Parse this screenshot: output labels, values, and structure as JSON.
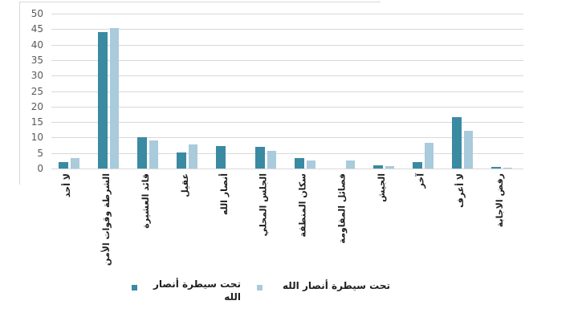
{
  "chart_data": {
    "type": "bar",
    "title": "",
    "xlabel": "",
    "ylabel": "",
    "categories": [
      "لا أحد",
      "الشرطة وقوات الأمن",
      "قائد العشيرة",
      "عقيل",
      "أنصار الله",
      "الجلس المحلي",
      "سكان المنطقة",
      "فصائل المقاومة",
      "الجيش",
      "آخر",
      "لا أعرف",
      "رفض الاجابة"
    ],
    "series": [
      {
        "name": "تحت سيطرة أنصار الله",
        "color": "#3a8aa2",
        "values": [
          2,
          44,
          10,
          5.2,
          7.2,
          7,
          3.3,
          0,
          1.1,
          2,
          16.6,
          0.4
        ]
      },
      {
        "name": "تحت سيطرة أنصار الله",
        "color": "#a9cbdc",
        "values": [
          3.5,
          45.4,
          9,
          7.7,
          0,
          5.7,
          2.5,
          2.6,
          0.9,
          8.2,
          12.2,
          0.2
        ]
      }
    ],
    "ylim": [
      0,
      50
    ],
    "ytick_step": 5,
    "yticks": [
      "0",
      "5",
      "10",
      "15",
      "20",
      "25",
      "30",
      "35",
      "40",
      "45",
      "50"
    ],
    "grid": true,
    "gridline_color": "#d9d9d9",
    "legend_position": "bottom",
    "axis_label_color": "#595959",
    "category_label_color": "#1f1f1f",
    "background": "#ffffff"
  }
}
